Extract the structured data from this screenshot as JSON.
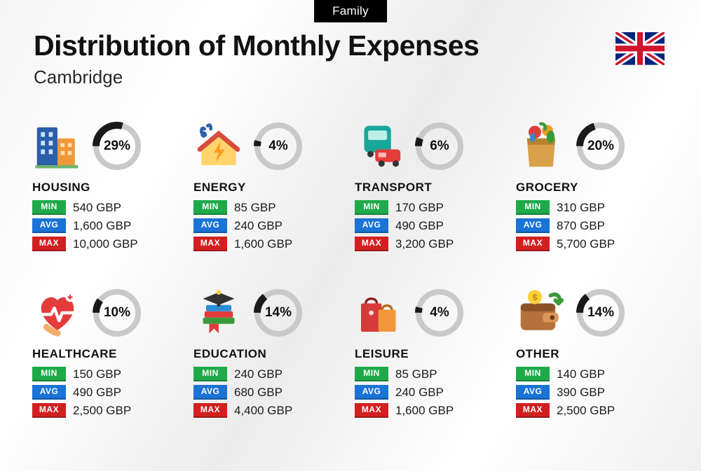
{
  "header": {
    "top_label": "Family",
    "title": "Distribution of Monthly Expenses",
    "subtitle": "Cambridge",
    "flag": "uk"
  },
  "labels": {
    "min": "MIN",
    "avg": "AVG",
    "max": "MAX"
  },
  "currency": "GBP",
  "donut_style": {
    "track_color": "#c9c9c9",
    "fill_color": "#1a1a1a",
    "track_width": 8,
    "fill_width": 10
  },
  "tag_colors": {
    "min": "#1faa4a",
    "avg": "#1a73d6",
    "max": "#d22020"
  },
  "categories": [
    {
      "id": "housing",
      "name": "HOUSING",
      "percent": 29,
      "min": "540",
      "avg": "1,600",
      "max": "10,000",
      "icon": "buildings"
    },
    {
      "id": "energy",
      "name": "ENERGY",
      "percent": 4,
      "min": "85",
      "avg": "240",
      "max": "1,600",
      "icon": "energy-house"
    },
    {
      "id": "transport",
      "name": "TRANSPORT",
      "percent": 6,
      "min": "170",
      "avg": "490",
      "max": "3,200",
      "icon": "transport"
    },
    {
      "id": "grocery",
      "name": "GROCERY",
      "percent": 20,
      "min": "310",
      "avg": "870",
      "max": "5,700",
      "icon": "grocery-bag"
    },
    {
      "id": "healthcare",
      "name": "HEALTHCARE",
      "percent": 10,
      "min": "150",
      "avg": "490",
      "max": "2,500",
      "icon": "healthcare"
    },
    {
      "id": "education",
      "name": "EDUCATION",
      "percent": 14,
      "min": "240",
      "avg": "680",
      "max": "4,400",
      "icon": "education"
    },
    {
      "id": "leisure",
      "name": "LEISURE",
      "percent": 4,
      "min": "85",
      "avg": "240",
      "max": "1,600",
      "icon": "shopping-bags"
    },
    {
      "id": "other",
      "name": "OTHER",
      "percent": 14,
      "min": "140",
      "avg": "390",
      "max": "2,500",
      "icon": "wallet"
    }
  ]
}
